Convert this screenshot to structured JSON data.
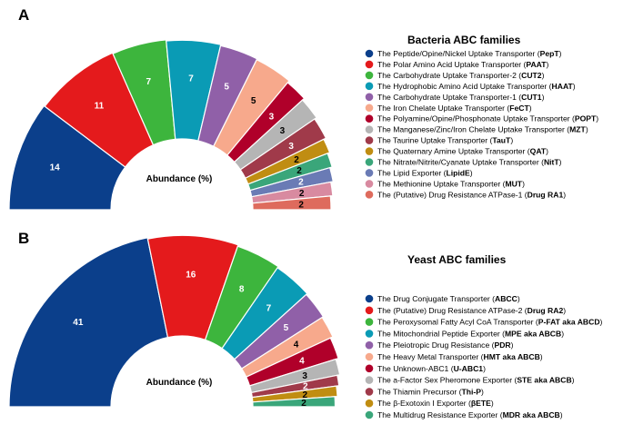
{
  "chart_data": [
    {
      "type": "pie",
      "variant": "half-donut",
      "panel": "A",
      "center_label": "Abundance (%)",
      "title": "Bacteria ABC families",
      "slices": [
        {
          "value": 14,
          "label": "14",
          "name": "The Peptide/Opine/Nickel Uptake Transporter (",
          "abbr": "PepT",
          "close": ")",
          "color": "#0b3f8b"
        },
        {
          "value": 11,
          "label": "11",
          "name": "The Polar Amino Acid Uptake Transporter (",
          "abbr": "PAAT",
          "close": ")",
          "color": "#e41a1c"
        },
        {
          "value": 7,
          "label": "7",
          "name": "The Carbohydrate Uptake Transporter-2 (",
          "abbr": "CUT2",
          "close": ")",
          "color": "#3db53d"
        },
        {
          "value": 7,
          "label": "7",
          "name": "The Hydrophobic Amino Acid Uptake Transporter (",
          "abbr": "HAAT",
          "close": ")",
          "color": "#0a9bb5"
        },
        {
          "value": 5,
          "label": "5",
          "name": "The Carbohydrate Uptake Transporter-1 (",
          "abbr": "CUT1",
          "close": ")",
          "color": "#9060a8"
        },
        {
          "value": 5,
          "label": "5",
          "name": "The Iron Chelate Uptake Transporter (",
          "abbr": "FeCT",
          "close": ")",
          "color": "#f7a98c"
        },
        {
          "value": 3,
          "label": "3",
          "name": "The Polyamine/Opine/Phosphonate Uptake Transporter (",
          "abbr": "POPT",
          "close": ")",
          "color": "#b0002a"
        },
        {
          "value": 3,
          "label": "3",
          "name": "The Manganese/Zinc/Iron Chelate Uptake Transporter (",
          "abbr": "MZT",
          "close": ")",
          "color": "#b5b5b5"
        },
        {
          "value": 3,
          "label": "3",
          "name": "The Taurine Uptake Transporter (",
          "abbr": "TauT",
          "close": ")",
          "color": "#a03a4a"
        },
        {
          "value": 2,
          "label": "2",
          "name": "The Quaternary Amine Uptake Transporter (",
          "abbr": "QAT",
          "close": ")",
          "color": "#c08d12"
        },
        {
          "value": 2,
          "label": "2",
          "name": "The Nitrate/Nitrite/Cyanate Uptake Transporter (",
          "abbr": "NitT",
          "close": ")",
          "color": "#3aa67a"
        },
        {
          "value": 2,
          "label": "2",
          "name": "The Lipid Exporter (",
          "abbr": "LipidE",
          "close": ")",
          "color": "#6a7bb5"
        },
        {
          "value": 2,
          "label": "2",
          "name": "The Methionine Uptake Transporter (",
          "abbr": "MUT",
          "close": ")",
          "color": "#d88aa0"
        },
        {
          "value": 2,
          "label": "2",
          "name": "The (Putative) Drug Resistance ATPase-1 (",
          "abbr": "Drug RA1",
          "close": ")",
          "color": "#de6b5d"
        }
      ]
    },
    {
      "type": "pie",
      "variant": "half-donut",
      "panel": "B",
      "center_label": "Abundance (%)",
      "title": "Yeast ABC families",
      "slices": [
        {
          "value": 41,
          "label": "41",
          "name": "The Drug Conjugate Transporter (",
          "abbr": "ABCC",
          "close": ")",
          "color": "#0b3f8b"
        },
        {
          "value": 16,
          "label": "16",
          "name": "The (Putative) Drug Resistance ATPase-2 (",
          "abbr": "Drug RA2",
          "close": ")",
          "color": "#e41a1c"
        },
        {
          "value": 8,
          "label": "8",
          "name": "The Peroxysomal Fatty Acyl CoA Transporter (",
          "abbr": "P-FAT aka ABCD",
          "close": ")",
          "color": "#3db53d"
        },
        {
          "value": 7,
          "label": "7",
          "name": "The Mitochondrial Peptide Exporter (",
          "abbr": "MPE aka ABCB",
          "close": ")",
          "color": "#0a9bb5"
        },
        {
          "value": 5,
          "label": "5",
          "name": "The Pleiotropic Drug Resistance (",
          "abbr": "PDR",
          "close": ")",
          "color": "#9060a8"
        },
        {
          "value": 4,
          "label": "4",
          "name": "The Heavy Metal Transporter (",
          "abbr": "HMT aka ABCB",
          "close": ")",
          "color": "#f7a98c"
        },
        {
          "value": 4,
          "label": "4",
          "name": "The Unknown-ABC1 (",
          "abbr": "U-ABC1",
          "close": ")",
          "color": "#b0002a"
        },
        {
          "value": 3,
          "label": "3",
          "name": "The a-Factor Sex Pheromone Exporter (",
          "abbr": "STE aka ABCB",
          "close": ")",
          "color": "#b5b5b5"
        },
        {
          "value": 2,
          "label": "2",
          "name": "The Thiamin Precursor (",
          "abbr": "Thi-P",
          "close": ")",
          "color": "#a03a4a"
        },
        {
          "value": 2,
          "label": "2",
          "name": "The β-Exotoxin I Exporter (",
          "abbr": "βETE",
          "close": ")",
          "color": "#c08d12"
        },
        {
          "value": 2,
          "label": "2",
          "name": "The Multidrug Resistance Exporter (",
          "abbr": "MDR aka ABCB",
          "close": ")",
          "color": "#3aa67a"
        }
      ]
    }
  ]
}
